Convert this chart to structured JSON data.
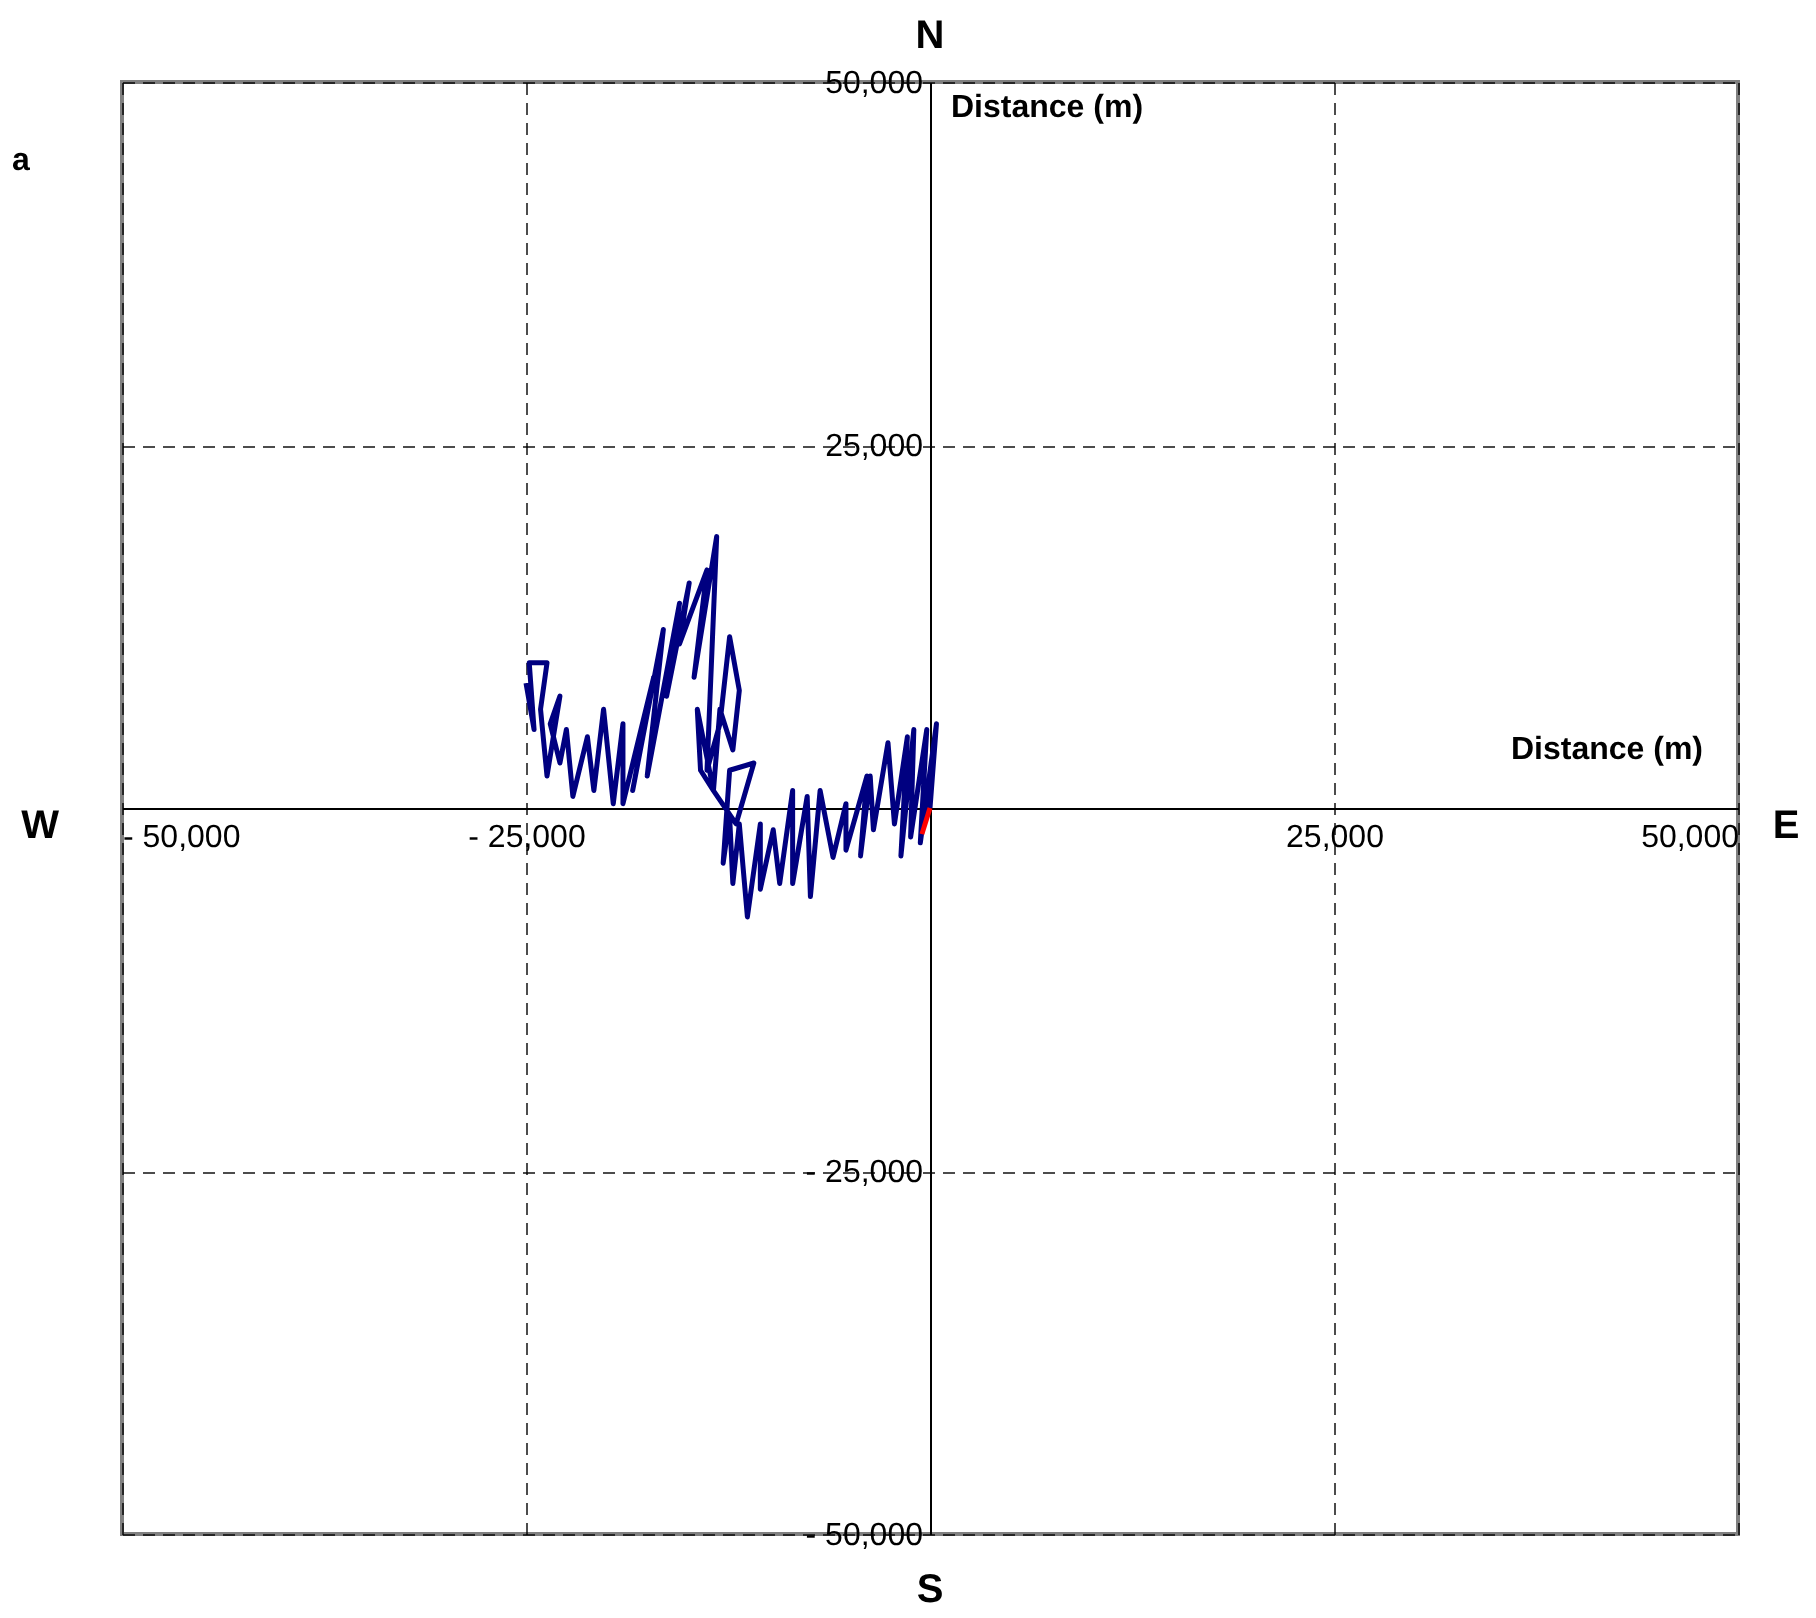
{
  "chart_data": {
    "type": "line",
    "xlabel": "Distance (m)",
    "ylabel": "Distance (m)",
    "annotations": [
      "N",
      "S",
      "W",
      "E",
      "a"
    ],
    "xlim": [
      -50000,
      50000
    ],
    "ylim": [
      -50000,
      50000
    ],
    "xticks": [
      {
        "value": -50000,
        "label": "- 50,000"
      },
      {
        "value": -25000,
        "label": "- 25,000"
      },
      {
        "value": 0,
        "label": null
      },
      {
        "value": 25000,
        "label": "25,000"
      },
      {
        "value": 50000,
        "label": "50,000"
      }
    ],
    "yticks": [
      {
        "value": -50000,
        "label": "- 50,000"
      },
      {
        "value": -25000,
        "label": "- 25,000"
      },
      {
        "value": 0,
        "label": null
      },
      {
        "value": 25000,
        "label": "25,000"
      },
      {
        "value": 50000,
        "label": "50,000"
      }
    ],
    "grid": true,
    "series": [
      {
        "color": "#000080",
        "x": [
          0,
          400,
          -600,
          -200,
          -1200,
          -1000,
          -1800,
          -1400,
          -2200,
          -2600,
          -3500,
          -3700,
          -4300,
          -3900,
          -5200,
          -5200,
          -6000,
          -6800,
          -7400,
          -7600,
          -8500,
          -8500,
          -9300,
          -9700,
          -10500,
          -10500,
          -11300,
          -11800,
          -12200,
          -12400,
          -12800,
          -12400,
          -10900,
          -12000,
          -13400,
          -14200,
          -14400,
          -13400,
          -13000,
          -12200,
          -11800,
          -12400,
          -13000,
          -13800,
          -13200,
          -14600,
          -13800,
          -15500,
          -14900,
          -16300,
          -15500,
          -17500,
          -16500,
          -18400,
          -17100,
          -19000,
          -19000,
          -19600,
          -20200,
          -20800,
          -21200,
          -22100,
          -22500,
          -22900,
          -23500,
          -22900,
          -23700,
          -24100,
          -23700,
          -24800,
          -24500,
          -25000
        ],
        "values": [
          0,
          5800,
          -2400,
          5400,
          -2000,
          5400,
          -3300,
          4900,
          -1100,
          4500,
          -1500,
          2200,
          -3300,
          2200,
          -2900,
          300,
          -3400,
          1200,
          -6100,
          800,
          -5200,
          1200,
          -5200,
          -1500,
          -5600,
          -1100,
          -7500,
          -1100,
          -5200,
          -600,
          -3800,
          2600,
          3100,
          -1100,
          1200,
          2600,
          6800,
          1200,
          6800,
          4000,
          8100,
          11800,
          5800,
          2600,
          18700,
          9000,
          16400,
          11300,
          15500,
          7700,
          14100,
          2200,
          12300,
          1200,
          9000,
          300,
          5800,
          300,
          6800,
          1200,
          4900,
          800,
          5400,
          3100,
          5800,
          7700,
          2200,
          6800,
          10000,
          10000,
          5400,
          8600
        ]
      },
      {
        "color": "#ff0000",
        "x": [
          0,
          -500
        ],
        "values": [
          0,
          -1800
        ]
      }
    ]
  }
}
